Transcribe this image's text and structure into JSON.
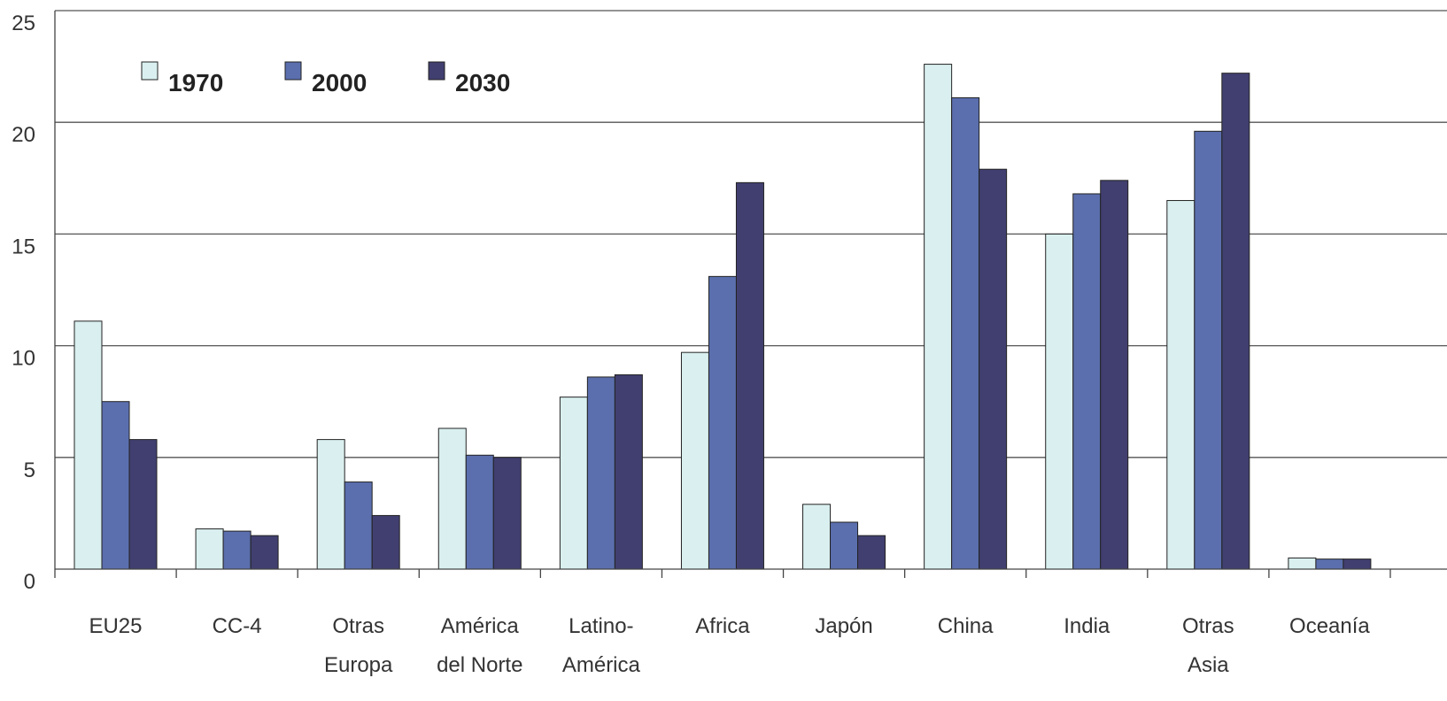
{
  "chart_data": {
    "type": "bar",
    "title": "",
    "xlabel": "",
    "ylabel": "",
    "ylim": [
      0,
      25
    ],
    "yticks": [
      0,
      5,
      10,
      15,
      20,
      25
    ],
    "grid": true,
    "legend_position": "top-left",
    "categories": [
      [
        "EU25"
      ],
      [
        "CC-4"
      ],
      [
        "Otras",
        "Europa"
      ],
      [
        "América",
        "del Norte"
      ],
      [
        "Latino-",
        "América"
      ],
      [
        "Africa"
      ],
      [
        "Japón"
      ],
      [
        "China"
      ],
      [
        "India"
      ],
      [
        "Otras",
        "Asia"
      ],
      [
        "Oceanía"
      ]
    ],
    "series": [
      {
        "name": "1970",
        "color": "#daf0f0",
        "values": [
          11.1,
          1.8,
          5.8,
          6.3,
          7.7,
          9.7,
          2.9,
          22.6,
          15.0,
          16.5,
          0.5
        ]
      },
      {
        "name": "2000",
        "color": "#5b6fae",
        "values": [
          7.5,
          1.7,
          3.9,
          5.1,
          8.6,
          13.1,
          2.1,
          21.1,
          16.8,
          19.6,
          0.45
        ]
      },
      {
        "name": "2030",
        "color": "#413f70",
        "values": [
          5.8,
          1.5,
          2.4,
          5.0,
          8.7,
          17.3,
          1.5,
          17.9,
          17.4,
          22.2,
          0.45
        ]
      }
    ]
  }
}
